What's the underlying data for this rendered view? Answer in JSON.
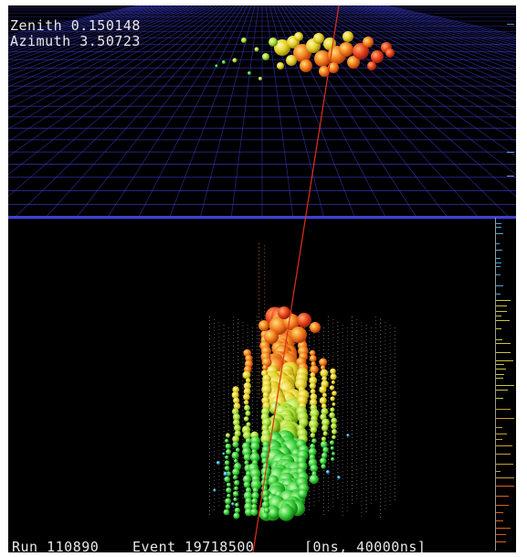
{
  "readout": {
    "zenith": "Zenith 0.150148",
    "azimuth": "Azimuth 3.50723"
  },
  "status": {
    "run": "Run 110890",
    "event": "Event 19718500",
    "time_window": "[0ns, 40000ns]"
  },
  "colors": {
    "background": "#000000",
    "grid": "#3a3ac8",
    "track": "#e0301a",
    "early_hit": "#e84a1a",
    "mid_hit": "#e8c81a",
    "late_hit": "#28d028",
    "text": "#e8e8e8"
  },
  "icons": {
    "event_display": "3d-event-display",
    "timing_histogram": "histogram-icon"
  }
}
